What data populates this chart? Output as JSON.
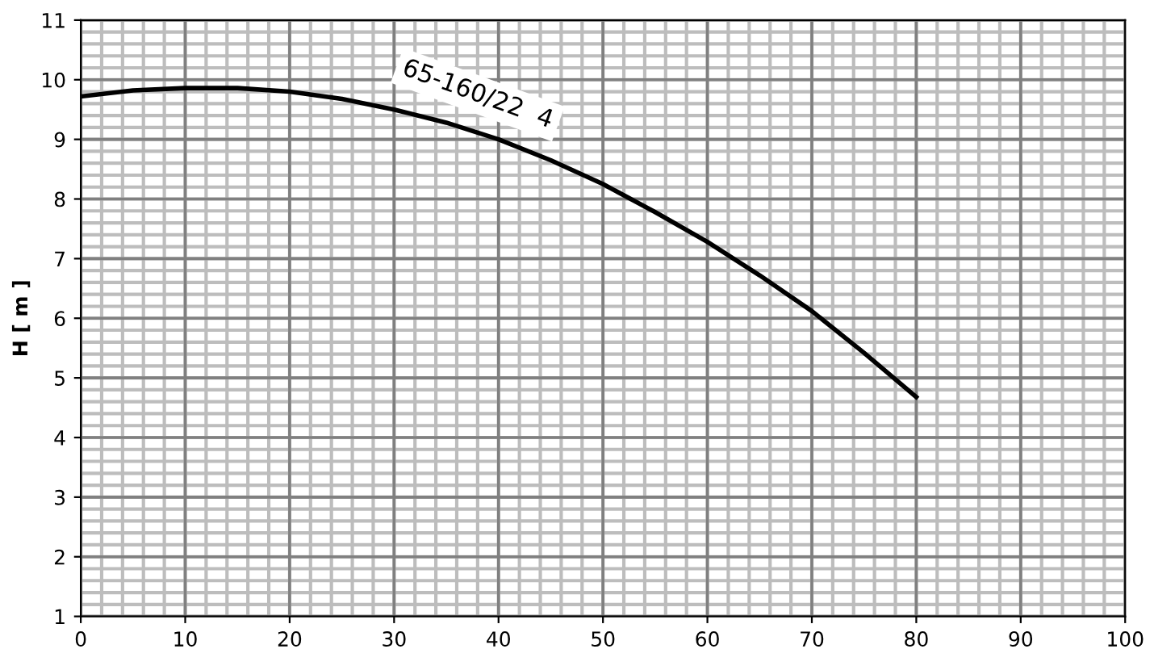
{
  "chart_data": {
    "type": "line",
    "ylabel": "H [ m ]",
    "x": [
      0,
      5,
      10,
      15,
      20,
      25,
      30,
      35,
      40,
      45,
      50,
      55,
      60,
      65,
      70,
      75,
      80
    ],
    "series": [
      {
        "name": "65-160/22  4",
        "color": "#000000",
        "values": [
          9.72,
          9.82,
          9.86,
          9.86,
          9.8,
          9.68,
          9.5,
          9.28,
          9.0,
          8.65,
          8.25,
          7.78,
          7.28,
          6.72,
          6.12,
          5.42,
          4.68
        ]
      }
    ],
    "xlim": [
      0,
      100
    ],
    "xticks": [
      0,
      10,
      20,
      30,
      40,
      50,
      60,
      70,
      80,
      90,
      100
    ],
    "ylim": [
      1,
      11
    ],
    "yticks": [
      1,
      2,
      3,
      4,
      5,
      6,
      7,
      8,
      9,
      10,
      11
    ],
    "grid": true,
    "marker": "none",
    "line_style": "solid",
    "legend": false
  }
}
